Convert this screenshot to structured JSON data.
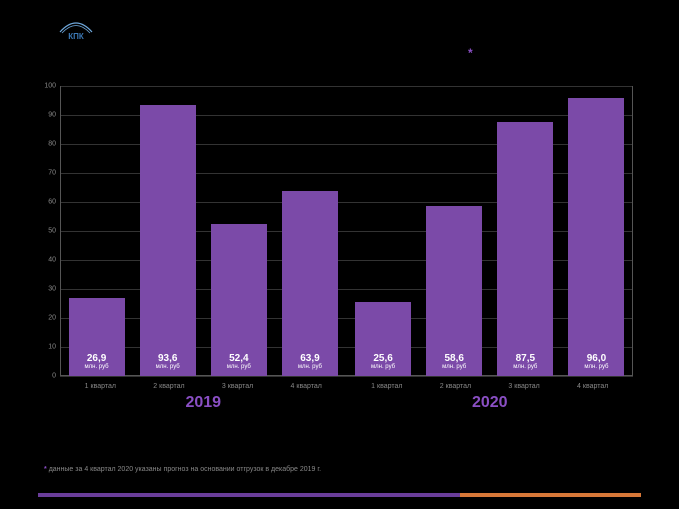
{
  "logo": {
    "text": "КПК",
    "arc_color": "#6fa8dc",
    "text_color": "#3b78b5"
  },
  "title": {
    "line1": "",
    "line2": ""
  },
  "asterisk": "*",
  "chart": {
    "type": "bar",
    "background_color": "#000000",
    "bar_color": "#7b4aa8",
    "grid_color": "#333333",
    "axis_color": "#555555",
    "text_color": "#888888",
    "value_text_color": "#ffffff",
    "year_color": "#8a4fc4",
    "ylim": [
      0,
      100
    ],
    "ytick_step": 10,
    "unit_label": "млн. руб",
    "groups": [
      {
        "year": "2019",
        "bars": [
          {
            "label": "1 квартал",
            "value": 26.9,
            "display": "26,9"
          },
          {
            "label": "2 квартал",
            "value": 93.6,
            "display": "93,6"
          },
          {
            "label": "3 квартал",
            "value": 52.4,
            "display": "52,4"
          },
          {
            "label": "4 квартал",
            "value": 63.9,
            "display": "63,9"
          }
        ]
      },
      {
        "year": "2020",
        "bars": [
          {
            "label": "1 квартал",
            "value": 25.6,
            "display": "25,6"
          },
          {
            "label": "2 квартал",
            "value": 58.6,
            "display": "58,6"
          },
          {
            "label": "3 квартал",
            "value": 87.5,
            "display": "87,5"
          },
          {
            "label": "4 квартал",
            "value": 96.0,
            "display": "96,0"
          }
        ]
      }
    ]
  },
  "footnote": {
    "star": "*",
    "text": "данные за 4 квартал 2020 указаны прогноз на основании отгрузок в декабре 2019 г."
  },
  "strip": {
    "left_color": "#6a3d9a",
    "right_color": "#d87838"
  }
}
